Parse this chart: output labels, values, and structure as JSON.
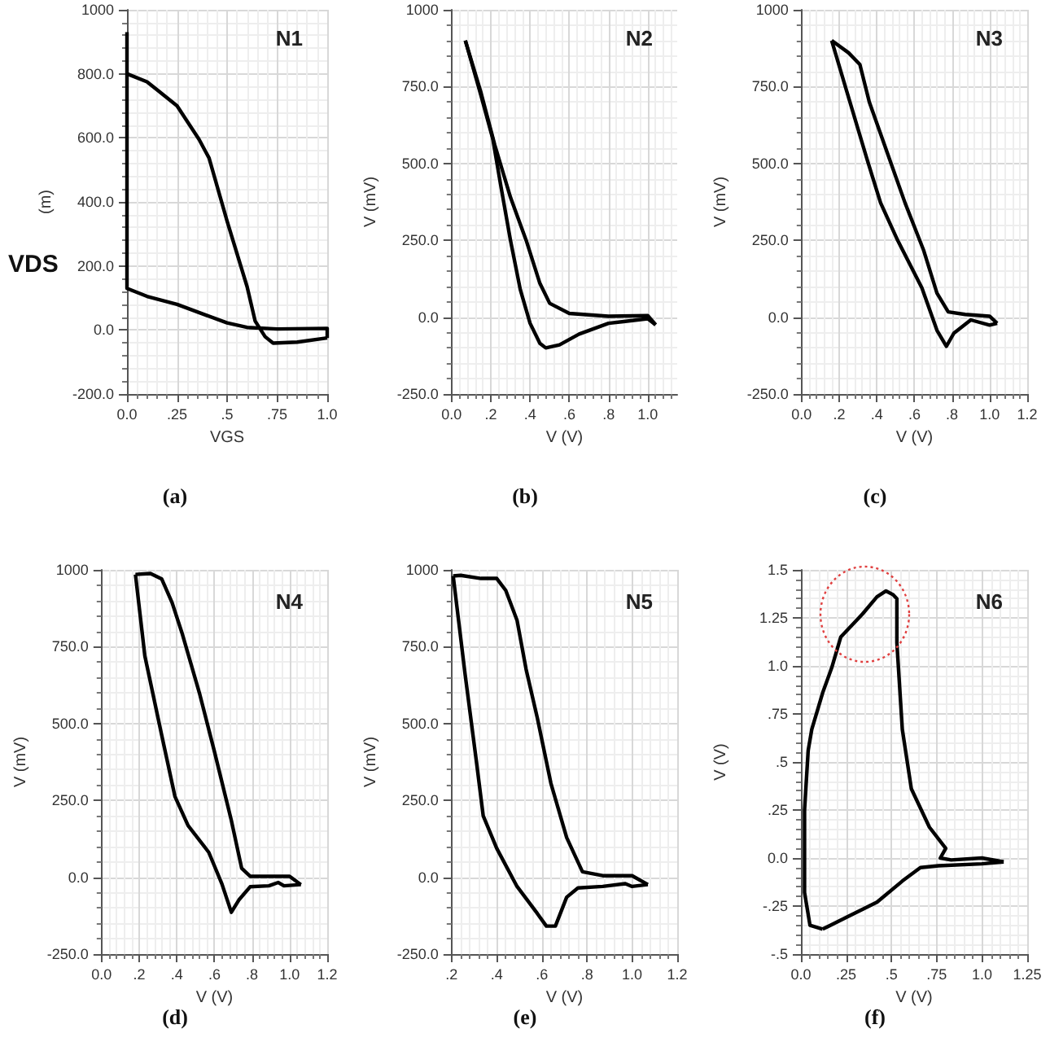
{
  "chart_data": [
    {
      "type": "line",
      "title": "N1",
      "subtitle": "(a)",
      "xlabel": "VGS",
      "ylabel": "(m)",
      "annotations": [
        "VDS"
      ],
      "grid": true,
      "xlim": [
        0,
        1
      ],
      "xticks": [
        {
          "value": 0,
          "label": "0.0"
        },
        {
          "value": 0.25,
          "label": ".25"
        },
        {
          "value": 0.5,
          "label": ".5"
        },
        {
          "value": 0.75,
          "label": ".75"
        },
        {
          "value": 1,
          "label": "1.0"
        }
      ],
      "ylim": [
        -200,
        1000
      ],
      "yticks": [
        {
          "value": -200,
          "label": "-200.0"
        },
        {
          "value": 0,
          "label": "0.0"
        },
        {
          "value": 200,
          "label": "200.0"
        },
        {
          "value": 400,
          "label": "400.0"
        },
        {
          "value": 600,
          "label": "600.0"
        },
        {
          "value": 800,
          "label": "800.0"
        },
        {
          "value": 1000,
          "label": "1000"
        }
      ],
      "series": [
        {
          "color": "#000000",
          "x": [
            0,
            0,
            0.1,
            0.25,
            0.4,
            0.5,
            0.6,
            0.75,
            1.0,
            1.0
          ],
          "values": [
            930,
            130,
            105,
            80,
            45,
            22,
            8,
            3,
            5,
            -25
          ]
        },
        {
          "color": "#000000",
          "x": [
            0,
            0.1,
            0.15,
            0.25,
            0.36,
            0.41,
            0.5,
            0.6,
            0.64,
            0.69,
            0.73,
            0.85,
            1.0
          ],
          "values": [
            800,
            775,
            750,
            700,
            595,
            537,
            340,
            135,
            28,
            -21,
            -41,
            -38,
            -25
          ]
        }
      ]
    },
    {
      "type": "line",
      "title": "N2",
      "subtitle": "(b)",
      "xlabel": "V (V)",
      "ylabel": "V (mV)",
      "grid": true,
      "xlim": [
        0,
        1.15
      ],
      "xticks": [
        {
          "value": 0,
          "label": "0.0"
        },
        {
          "value": 0.2,
          "label": ".2"
        },
        {
          "value": 0.4,
          "label": ".4"
        },
        {
          "value": 0.6,
          "label": ".6"
        },
        {
          "value": 0.8,
          "label": ".8"
        },
        {
          "value": 1.0,
          "label": "1.0"
        }
      ],
      "ylim": [
        -250,
        1000
      ],
      "yticks": [
        {
          "value": -250,
          "label": "-250.0"
        },
        {
          "value": 0,
          "label": "0.0"
        },
        {
          "value": 250,
          "label": "250.0"
        },
        {
          "value": 500,
          "label": "500.0"
        },
        {
          "value": 750,
          "label": "750.0"
        },
        {
          "value": 1000,
          "label": "1000"
        }
      ],
      "series": [
        {
          "color": "#000000",
          "x": [
            0.07,
            0.15,
            0.21,
            0.25,
            0.3,
            0.35,
            0.4,
            0.45,
            0.48,
            0.55,
            0.65,
            0.8,
            1.0,
            1.04
          ],
          "values": [
            900,
            720,
            580,
            430,
            250,
            90,
            -20,
            -85,
            -100,
            -90,
            -55,
            -20,
            -5,
            -25
          ]
        },
        {
          "color": "#000000",
          "x": [
            0.07,
            0.15,
            0.22,
            0.3,
            0.38,
            0.45,
            0.5,
            0.6,
            0.8,
            1.0,
            1.04
          ],
          "values": [
            900,
            730,
            560,
            390,
            250,
            110,
            45,
            12,
            3,
            5,
            -25
          ]
        }
      ]
    },
    {
      "type": "line",
      "title": "N3",
      "subtitle": "(c)",
      "xlabel": "V (V)",
      "ylabel": "V (mV)",
      "grid": true,
      "xlim": [
        0,
        1.2
      ],
      "xticks": [
        {
          "value": 0,
          "label": "0.0"
        },
        {
          "value": 0.2,
          "label": ".2"
        },
        {
          "value": 0.4,
          "label": ".4"
        },
        {
          "value": 0.6,
          "label": ".6"
        },
        {
          "value": 0.8,
          "label": ".8"
        },
        {
          "value": 1.0,
          "label": "1.0"
        },
        {
          "value": 1.2,
          "label": "1.2"
        }
      ],
      "ylim": [
        -250,
        1000
      ],
      "yticks": [
        {
          "value": -250,
          "label": "-250.0"
        },
        {
          "value": 0,
          "label": "0.0"
        },
        {
          "value": 250,
          "label": "250.0"
        },
        {
          "value": 500,
          "label": "500.0"
        },
        {
          "value": 750,
          "label": "750.0"
        },
        {
          "value": 1000,
          "label": "1000"
        }
      ],
      "series": [
        {
          "color": "#000000",
          "x": [
            0.16,
            0.24,
            0.35,
            0.42,
            0.51,
            0.64,
            0.72,
            0.77,
            0.81,
            0.9,
            1.0,
            1.04
          ],
          "values": [
            900,
            735,
            510,
            372,
            251,
            95,
            -43,
            -95,
            -52,
            -9,
            -26,
            -20
          ]
        },
        {
          "color": "#000000",
          "x": [
            0.16,
            0.25,
            0.31,
            0.36,
            0.47,
            0.55,
            0.65,
            0.72,
            0.78,
            0.87,
            1.0,
            1.04
          ],
          "values": [
            900,
            860,
            822,
            700,
            510,
            372,
            216,
            78,
            17,
            9,
            3,
            -20
          ]
        }
      ]
    },
    {
      "type": "line",
      "title": "N4",
      "subtitle": "(d)",
      "xlabel": "V (V)",
      "ylabel": "V (mV)",
      "grid": true,
      "xlim": [
        0,
        1.2
      ],
      "xticks": [
        {
          "value": 0,
          "label": "0.0"
        },
        {
          "value": 0.2,
          "label": ".2"
        },
        {
          "value": 0.4,
          "label": ".4"
        },
        {
          "value": 0.6,
          "label": ".6"
        },
        {
          "value": 0.8,
          "label": ".8"
        },
        {
          "value": 1.0,
          "label": "1.0"
        },
        {
          "value": 1.2,
          "label": "1.2"
        }
      ],
      "ylim": [
        -250,
        1000
      ],
      "yticks": [
        {
          "value": -250,
          "label": "-250.0"
        },
        {
          "value": 0,
          "label": "0.0"
        },
        {
          "value": 250,
          "label": "250.0"
        },
        {
          "value": 500,
          "label": "500.0"
        },
        {
          "value": 750,
          "label": "750.0"
        },
        {
          "value": 1000,
          "label": "1000"
        }
      ],
      "series": [
        {
          "color": "#000000",
          "x": [
            0.18,
            0.23,
            0.32,
            0.39,
            0.46,
            0.57,
            0.64,
            0.69,
            0.73,
            0.79,
            0.89,
            0.94,
            0.97,
            1.06
          ],
          "values": [
            985,
            720,
            461,
            263,
            168,
            81,
            -22,
            -114,
            -74,
            -31,
            -28,
            -17,
            -28,
            -24
          ]
        },
        {
          "color": "#000000",
          "x": [
            0.18,
            0.26,
            0.32,
            0.375,
            0.43,
            0.52,
            0.6,
            0.69,
            0.745,
            0.79,
            1.0,
            1.06
          ],
          "values": [
            985,
            988,
            970,
            893,
            790,
            600,
            409,
            185,
            29,
            3,
            3,
            -24
          ]
        }
      ]
    },
    {
      "type": "line",
      "title": "N5",
      "subtitle": "(e)",
      "xlabel": "V (V)",
      "ylabel": "V (mV)",
      "grid": true,
      "xlim": [
        0.2,
        1.2
      ],
      "xticks": [
        {
          "value": 0.2,
          "label": ".2"
        },
        {
          "value": 0.4,
          "label": ".4"
        },
        {
          "value": 0.6,
          "label": ".6"
        },
        {
          "value": 0.8,
          "label": ".8"
        },
        {
          "value": 1.0,
          "label": "1.0"
        },
        {
          "value": 1.2,
          "label": "1.2"
        }
      ],
      "ylim": [
        -250,
        1000
      ],
      "yticks": [
        {
          "value": -250,
          "label": "-250.0"
        },
        {
          "value": 0,
          "label": "0.0"
        },
        {
          "value": 250,
          "label": "250.0"
        },
        {
          "value": 500,
          "label": "500.0"
        },
        {
          "value": 750,
          "label": "750.0"
        },
        {
          "value": 1000,
          "label": "1000"
        }
      ],
      "series": [
        {
          "color": "#000000",
          "x": [
            0.207,
            0.26,
            0.31,
            0.34,
            0.4,
            0.49,
            0.58,
            0.62,
            0.66,
            0.71,
            0.76,
            0.87,
            0.97,
            1.0,
            1.07
          ],
          "values": [
            980,
            659,
            376,
            200,
            94,
            -30,
            -118,
            -159,
            -159,
            -65,
            -35,
            -30,
            -21,
            -30,
            -24
          ]
        },
        {
          "color": "#000000",
          "x": [
            0.207,
            0.24,
            0.33,
            0.4,
            0.44,
            0.49,
            0.53,
            0.58,
            0.64,
            0.71,
            0.78,
            0.87,
            1.0,
            1.07
          ],
          "values": [
            980,
            982,
            972,
            972,
            933,
            836,
            677,
            518,
            306,
            129,
            18,
            5,
            5,
            -24
          ]
        }
      ]
    },
    {
      "type": "line",
      "title": "N6",
      "subtitle": "(f)",
      "xlabel": "V (V)",
      "ylabel": "V (V)",
      "grid": true,
      "xlim": [
        0,
        1.25
      ],
      "xticks": [
        {
          "value": 0,
          "label": "0.0"
        },
        {
          "value": 0.25,
          "label": ".25"
        },
        {
          "value": 0.5,
          "label": ".5"
        },
        {
          "value": 0.75,
          "label": ".75"
        },
        {
          "value": 1.0,
          "label": "1.0"
        },
        {
          "value": 1.25,
          "label": "1.25"
        }
      ],
      "ylim": [
        -0.5,
        1.5
      ],
      "yticks": [
        {
          "value": -0.5,
          "label": "-.5"
        },
        {
          "value": -0.25,
          "label": "-.25"
        },
        {
          "value": 0,
          "label": "0.0"
        },
        {
          "value": 0.25,
          "label": ".25"
        },
        {
          "value": 0.5,
          "label": ".5"
        },
        {
          "value": 0.75,
          "label": ".75"
        },
        {
          "value": 1.0,
          "label": "1.0"
        },
        {
          "value": 1.25,
          "label": "1.25"
        },
        {
          "value": 1.5,
          "label": "1.5"
        }
      ],
      "series": [
        {
          "color": "#000000",
          "x": [
            0.12,
            0.05,
            0.02,
            0.02,
            0.04,
            0.06,
            0.12,
            0.17,
            0.22,
            0.27,
            0.34,
            0.42,
            0.47,
            0.51,
            0.53,
            0.53,
            0.56,
            0.61,
            0.71,
            0.8,
            0.77,
            0.83,
            1.0,
            1.12
          ],
          "values": [
            -0.37,
            -0.35,
            -0.18,
            0.25,
            0.56,
            0.67,
            0.86,
            0.99,
            1.15,
            1.2,
            1.27,
            1.36,
            1.39,
            1.37,
            1.35,
            1.12,
            0.67,
            0.36,
            0.16,
            0.05,
            0.0,
            -0.01,
            0.0,
            -0.02
          ]
        },
        {
          "color": "#000000",
          "x": [
            0.12,
            0.27,
            0.42,
            0.56,
            0.66,
            0.76,
            1.0,
            1.12
          ],
          "values": [
            -0.37,
            -0.3,
            -0.23,
            -0.12,
            -0.05,
            -0.04,
            -0.03,
            -0.02
          ]
        }
      ]
    }
  ]
}
